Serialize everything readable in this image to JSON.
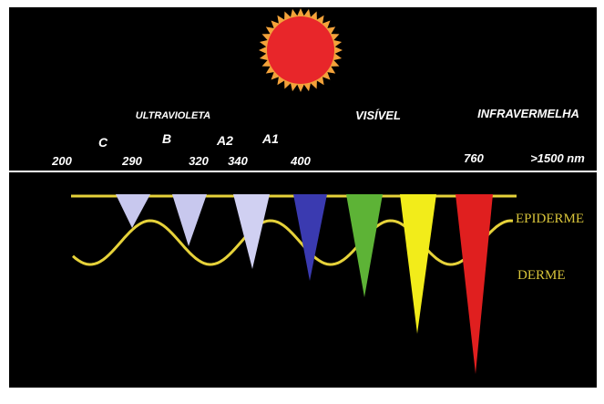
{
  "spectrum": {
    "ultraviolet": "ULTRAVIOLETA",
    "visible": "VISÍVEL",
    "infrared": "INFRAVERMELHA"
  },
  "bands": [
    "C",
    "B",
    "A2",
    "A1"
  ],
  "wavelengths": [
    "200",
    "290",
    "320",
    "340",
    "400",
    "760",
    ">1500 nm"
  ],
  "layers": [
    "EPIDERME",
    "DERME"
  ]
}
